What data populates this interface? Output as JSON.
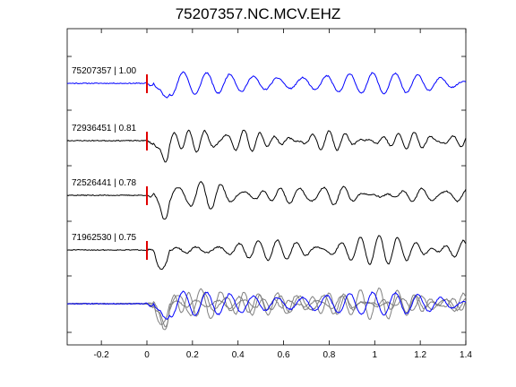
{
  "title": "75207357.NC.MCV.EHZ",
  "chart_data": {
    "type": "line",
    "title": "75207357.NC.MCV.EHZ",
    "xlabel": "",
    "ylabel": "",
    "xlim": [
      -0.35,
      1.4
    ],
    "x_ticks": [
      -0.2,
      0,
      0.2,
      0.4,
      0.6,
      0.8,
      1,
      1.2,
      1.4
    ],
    "x_tick_labels": [
      "-0.2",
      "0",
      "0.2",
      "0.4",
      "0.6",
      "0.8",
      "1",
      "1.2",
      "1.4"
    ],
    "grid": false,
    "pick_time": 0,
    "pick_color": "#e00000",
    "series": [
      {
        "name": "75207357 | 1.00",
        "color": "#0000ff"
      },
      {
        "name": "72936451 | 0.81",
        "color": "#000000"
      },
      {
        "name": "72526441 | 0.78",
        "color": "#000000"
      },
      {
        "name": "71962530 | 0.75",
        "color": "#000000"
      }
    ],
    "stack_colors": [
      "#808080",
      "#808080",
      "#808080",
      "#0000ff"
    ]
  }
}
